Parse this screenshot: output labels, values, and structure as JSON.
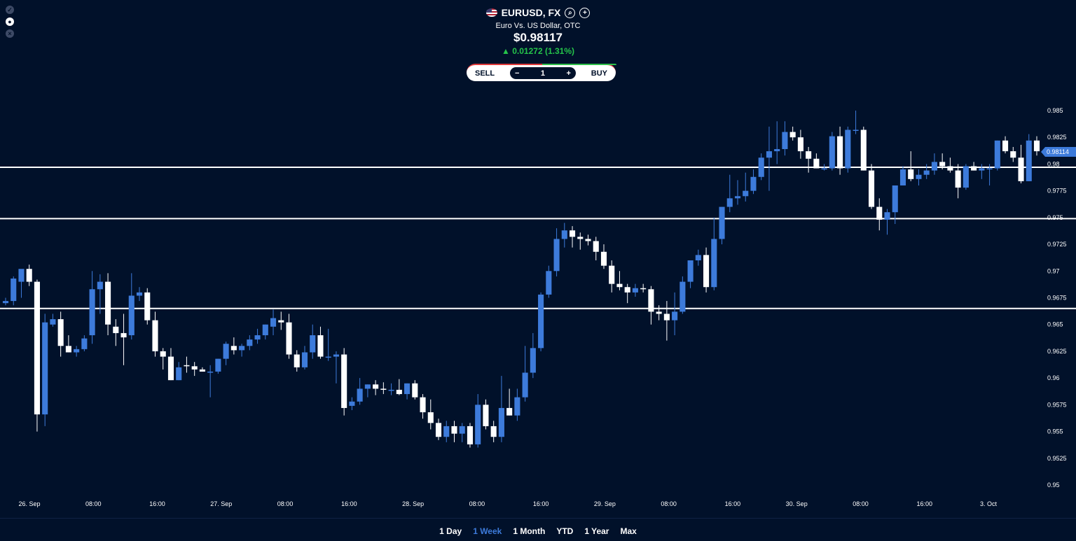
{
  "header": {
    "symbol": "EURUSD, FX",
    "name": "Euro Vs. US Dollar, OTC",
    "price": "$0.98117",
    "change_arrow": "▲",
    "change": "0.01272 (1.31%)",
    "up_color": "#25c54a"
  },
  "trade": {
    "sell_label": "SELL",
    "buy_label": "BUY",
    "quantity": "1",
    "minus": "−",
    "plus": "+"
  },
  "ranges": [
    {
      "label": "1 Day",
      "active": false
    },
    {
      "label": "1 Week",
      "active": true
    },
    {
      "label": "1 Month",
      "active": false
    },
    {
      "label": "YTD",
      "active": false
    },
    {
      "label": "1 Year",
      "active": false
    },
    {
      "label": "Max",
      "active": false
    }
  ],
  "colors": {
    "up": "#3d7bdb",
    "down": "#ffffff",
    "background": "#01112a",
    "accent": "#3d7bdb"
  },
  "chart_data": {
    "type": "candlestick",
    "y_ticks": [
      "0.985",
      "0.9825",
      "0.98",
      "0.9775",
      "0.975",
      "0.9725",
      "0.97",
      "0.9675",
      "0.965",
      "0.9625",
      "0.96",
      "0.9575",
      "0.955",
      "0.9525",
      "0.95"
    ],
    "x_ticks": [
      "26. Sep",
      "08:00",
      "16:00",
      "27. Sep",
      "08:00",
      "16:00",
      "28. Sep",
      "08:00",
      "16:00",
      "29. Sep",
      "08:00",
      "16:00",
      "30. Sep",
      "08:00",
      "16:00",
      "3. Oct"
    ],
    "ylim": [
      0.95,
      0.985
    ],
    "current_price_label": "0.98114",
    "current_price": 0.98114,
    "horizontal_lines": [
      0.9797,
      0.9749,
      0.9665
    ],
    "candles_ohlc": [
      [
        0.967,
        0.9675,
        0.9668,
        0.9672
      ],
      [
        0.9672,
        0.9695,
        0.9668,
        0.9693
      ],
      [
        0.969,
        0.97,
        0.9675,
        0.9702
      ],
      [
        0.9702,
        0.9706,
        0.9686,
        0.969
      ],
      [
        0.969,
        0.9692,
        0.955,
        0.9566
      ],
      [
        0.9566,
        0.966,
        0.9555,
        0.9652
      ],
      [
        0.965,
        0.966,
        0.9648,
        0.9655
      ],
      [
        0.9655,
        0.9662,
        0.962,
        0.963
      ],
      [
        0.963,
        0.964,
        0.9624,
        0.9624
      ],
      [
        0.9624,
        0.963,
        0.962,
        0.9627
      ],
      [
        0.9627,
        0.964,
        0.9625,
        0.9637
      ],
      [
        0.964,
        0.97,
        0.9632,
        0.9683
      ],
      [
        0.9683,
        0.9697,
        0.966,
        0.969
      ],
      [
        0.969,
        0.9698,
        0.964,
        0.965
      ],
      [
        0.9648,
        0.9655,
        0.963,
        0.9642
      ],
      [
        0.9642,
        0.966,
        0.9612,
        0.9638
      ],
      [
        0.964,
        0.9698,
        0.9636,
        0.9677
      ],
      [
        0.9677,
        0.9685,
        0.9672,
        0.968
      ],
      [
        0.968,
        0.9684,
        0.965,
        0.9654
      ],
      [
        0.9654,
        0.9662,
        0.962,
        0.9625
      ],
      [
        0.9625,
        0.9628,
        0.9608,
        0.962
      ],
      [
        0.962,
        0.9628,
        0.9598,
        0.9598
      ],
      [
        0.9598,
        0.9615,
        0.9598,
        0.961
      ],
      [
        0.9612,
        0.962,
        0.9605,
        0.9611
      ],
      [
        0.9611,
        0.9615,
        0.9602,
        0.9608
      ],
      [
        0.9608,
        0.961,
        0.9606,
        0.9606
      ],
      [
        0.9606,
        0.9612,
        0.9582,
        0.9606
      ],
      [
        0.9606,
        0.9618,
        0.9604,
        0.9618
      ],
      [
        0.9618,
        0.9634,
        0.9612,
        0.9632
      ],
      [
        0.963,
        0.9638,
        0.9622,
        0.9626
      ],
      [
        0.9626,
        0.9632,
        0.962,
        0.963
      ],
      [
        0.963,
        0.964,
        0.9626,
        0.9636
      ],
      [
        0.9636,
        0.9646,
        0.9632,
        0.964
      ],
      [
        0.964,
        0.965,
        0.9636,
        0.965
      ],
      [
        0.9648,
        0.9664,
        0.964,
        0.9656
      ],
      [
        0.9654,
        0.9662,
        0.9645,
        0.9652
      ],
      [
        0.9652,
        0.966,
        0.9618,
        0.9622
      ],
      [
        0.9622,
        0.9626,
        0.9606,
        0.961
      ],
      [
        0.961,
        0.963,
        0.9608,
        0.9624
      ],
      [
        0.9624,
        0.965,
        0.9618,
        0.964
      ],
      [
        0.964,
        0.9648,
        0.9618,
        0.962
      ],
      [
        0.962,
        0.9646,
        0.9616,
        0.962
      ],
      [
        0.962,
        0.9625,
        0.9595,
        0.9622
      ],
      [
        0.9622,
        0.9628,
        0.9565,
        0.9572
      ],
      [
        0.9574,
        0.9582,
        0.957,
        0.9578
      ],
      [
        0.9578,
        0.96,
        0.9575,
        0.959
      ],
      [
        0.959,
        0.9594,
        0.9582,
        0.9594
      ],
      [
        0.9594,
        0.9598,
        0.9584,
        0.959
      ],
      [
        0.959,
        0.9596,
        0.9585,
        0.9589
      ],
      [
        0.9589,
        0.9595,
        0.9584,
        0.9589
      ],
      [
        0.9589,
        0.9599,
        0.9584,
        0.9585
      ],
      [
        0.9585,
        0.9595,
        0.958,
        0.9595
      ],
      [
        0.9595,
        0.9598,
        0.958,
        0.9582
      ],
      [
        0.9582,
        0.9585,
        0.9562,
        0.9568
      ],
      [
        0.9568,
        0.958,
        0.9552,
        0.9558
      ],
      [
        0.9558,
        0.9562,
        0.9542,
        0.9545
      ],
      [
        0.9545,
        0.956,
        0.954,
        0.9555
      ],
      [
        0.9555,
        0.956,
        0.954,
        0.9548
      ],
      [
        0.9548,
        0.9558,
        0.954,
        0.9555
      ],
      [
        0.9555,
        0.9558,
        0.9535,
        0.9538
      ],
      [
        0.9538,
        0.9585,
        0.9535,
        0.9575
      ],
      [
        0.9575,
        0.958,
        0.9552,
        0.9555
      ],
      [
        0.9555,
        0.956,
        0.954,
        0.9545
      ],
      [
        0.9545,
        0.9602,
        0.954,
        0.9572
      ],
      [
        0.9572,
        0.959,
        0.9565,
        0.9565
      ],
      [
        0.9565,
        0.959,
        0.956,
        0.9582
      ],
      [
        0.9582,
        0.963,
        0.9578,
        0.9605
      ],
      [
        0.9605,
        0.9642,
        0.96,
        0.9628
      ],
      [
        0.9628,
        0.968,
        0.9625,
        0.9678
      ],
      [
        0.9678,
        0.9705,
        0.9675,
        0.97
      ],
      [
        0.97,
        0.974,
        0.9695,
        0.973
      ],
      [
        0.973,
        0.9745,
        0.9722,
        0.9738
      ],
      [
        0.9738,
        0.9742,
        0.9722,
        0.9732
      ],
      [
        0.9732,
        0.9736,
        0.972,
        0.973
      ],
      [
        0.973,
        0.9734,
        0.9724,
        0.9728
      ],
      [
        0.9728,
        0.9732,
        0.971,
        0.9718
      ],
      [
        0.9718,
        0.9725,
        0.9702,
        0.9705
      ],
      [
        0.9705,
        0.971,
        0.968,
        0.9688
      ],
      [
        0.9688,
        0.97,
        0.9682,
        0.9685
      ],
      [
        0.9685,
        0.9688,
        0.967,
        0.968
      ],
      [
        0.968,
        0.9688,
        0.9676,
        0.9684
      ],
      [
        0.9684,
        0.9688,
        0.968,
        0.9683
      ],
      [
        0.9683,
        0.9686,
        0.965,
        0.9662
      ],
      [
        0.9662,
        0.9668,
        0.9654,
        0.966
      ],
      [
        0.966,
        0.9672,
        0.9635,
        0.9654
      ],
      [
        0.9654,
        0.968,
        0.964,
        0.9662
      ],
      [
        0.9662,
        0.9695,
        0.966,
        0.969
      ],
      [
        0.969,
        0.971,
        0.9684,
        0.971
      ],
      [
        0.971,
        0.972,
        0.9705,
        0.9715
      ],
      [
        0.9715,
        0.9722,
        0.968,
        0.9685
      ],
      [
        0.9685,
        0.975,
        0.9682,
        0.973
      ],
      [
        0.973,
        0.976,
        0.9725,
        0.976
      ],
      [
        0.976,
        0.979,
        0.9755,
        0.9768
      ],
      [
        0.9768,
        0.9785,
        0.9762,
        0.977
      ],
      [
        0.977,
        0.9792,
        0.9765,
        0.9775
      ],
      [
        0.9775,
        0.9795,
        0.9772,
        0.9788
      ],
      [
        0.9788,
        0.981,
        0.9785,
        0.9806
      ],
      [
        0.9806,
        0.9835,
        0.9775,
        0.9812
      ],
      [
        0.9812,
        0.984,
        0.98,
        0.9814
      ],
      [
        0.9814,
        0.984,
        0.9808,
        0.983
      ],
      [
        0.983,
        0.9835,
        0.9822,
        0.9825
      ],
      [
        0.9825,
        0.9832,
        0.9805,
        0.9812
      ],
      [
        0.9812,
        0.9816,
        0.9792,
        0.9805
      ],
      [
        0.9805,
        0.981,
        0.9796,
        0.9796
      ],
      [
        0.9796,
        0.98,
        0.9794,
        0.9796
      ],
      [
        0.9796,
        0.983,
        0.9794,
        0.9826
      ],
      [
        0.9826,
        0.9835,
        0.979,
        0.9796
      ],
      [
        0.9796,
        0.9835,
        0.9792,
        0.9832
      ],
      [
        0.9832,
        0.985,
        0.9828,
        0.9832
      ],
      [
        0.9832,
        0.9835,
        0.9794,
        0.9794
      ],
      [
        0.9794,
        0.98,
        0.9758,
        0.976
      ],
      [
        0.976,
        0.9768,
        0.9738,
        0.9748
      ],
      [
        0.9748,
        0.9758,
        0.9734,
        0.9755
      ],
      [
        0.9755,
        0.9778,
        0.9744,
        0.978
      ],
      [
        0.978,
        0.9798,
        0.978,
        0.9795
      ],
      [
        0.9795,
        0.9812,
        0.9784,
        0.9786
      ],
      [
        0.9786,
        0.9795,
        0.978,
        0.979
      ],
      [
        0.979,
        0.98,
        0.9786,
        0.9794
      ],
      [
        0.9794,
        0.981,
        0.979,
        0.9802
      ],
      [
        0.9802,
        0.981,
        0.9795,
        0.9798
      ],
      [
        0.9798,
        0.9806,
        0.9792,
        0.9794
      ],
      [
        0.9794,
        0.98,
        0.9768,
        0.9778
      ],
      [
        0.9778,
        0.98,
        0.9776,
        0.9798
      ],
      [
        0.9798,
        0.9802,
        0.9794,
        0.9794
      ],
      [
        0.9794,
        0.98,
        0.9786,
        0.9796
      ],
      [
        0.9796,
        0.98,
        0.978,
        0.9796
      ],
      [
        0.9796,
        0.9822,
        0.9794,
        0.9822
      ],
      [
        0.9822,
        0.9826,
        0.981,
        0.9812
      ],
      [
        0.9812,
        0.9816,
        0.9802,
        0.9806
      ],
      [
        0.9806,
        0.9818,
        0.9782,
        0.9784
      ],
      [
        0.9784,
        0.9828,
        0.9784,
        0.9822
      ],
      [
        0.9822,
        0.9826,
        0.9808,
        0.9812
      ]
    ]
  }
}
